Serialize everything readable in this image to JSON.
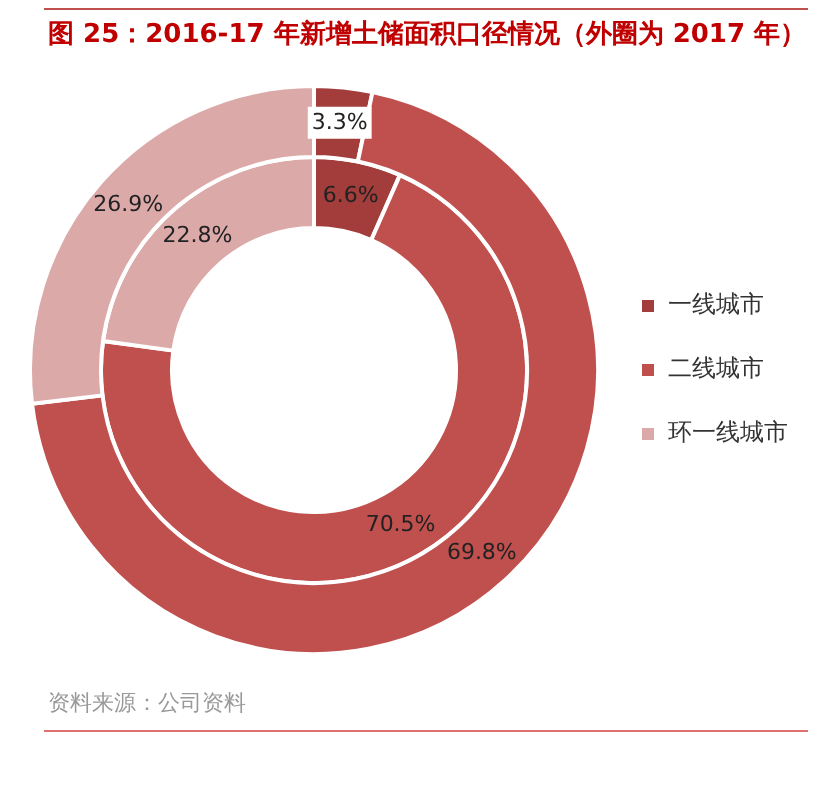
{
  "chart_data": {
    "type": "donut",
    "title": "图 25：2016-17 年新增土储面积口径情况（外圈为 2017 年）",
    "categories": [
      "一线城市",
      "二线城市",
      "环一线城市"
    ],
    "series": [
      {
        "colors": [
          "#a33d3b",
          "#c0504d",
          "#dba9a8"
        ],
        "values": [
          3.3,
          69.8,
          26.9
        ],
        "value_labels": [
          "3.3%",
          "69.8%",
          "26.9%"
        ]
      },
      {
        "colors": [
          "#a33d3b",
          "#c0504d",
          "#dba9a8"
        ],
        "values": [
          6.6,
          70.5,
          22.8
        ],
        "value_labels": [
          "6.6%",
          "70.5%",
          "22.8%"
        ]
      }
    ],
    "legend": "right",
    "annotations": [
      "资料来源：公司资料"
    ]
  }
}
